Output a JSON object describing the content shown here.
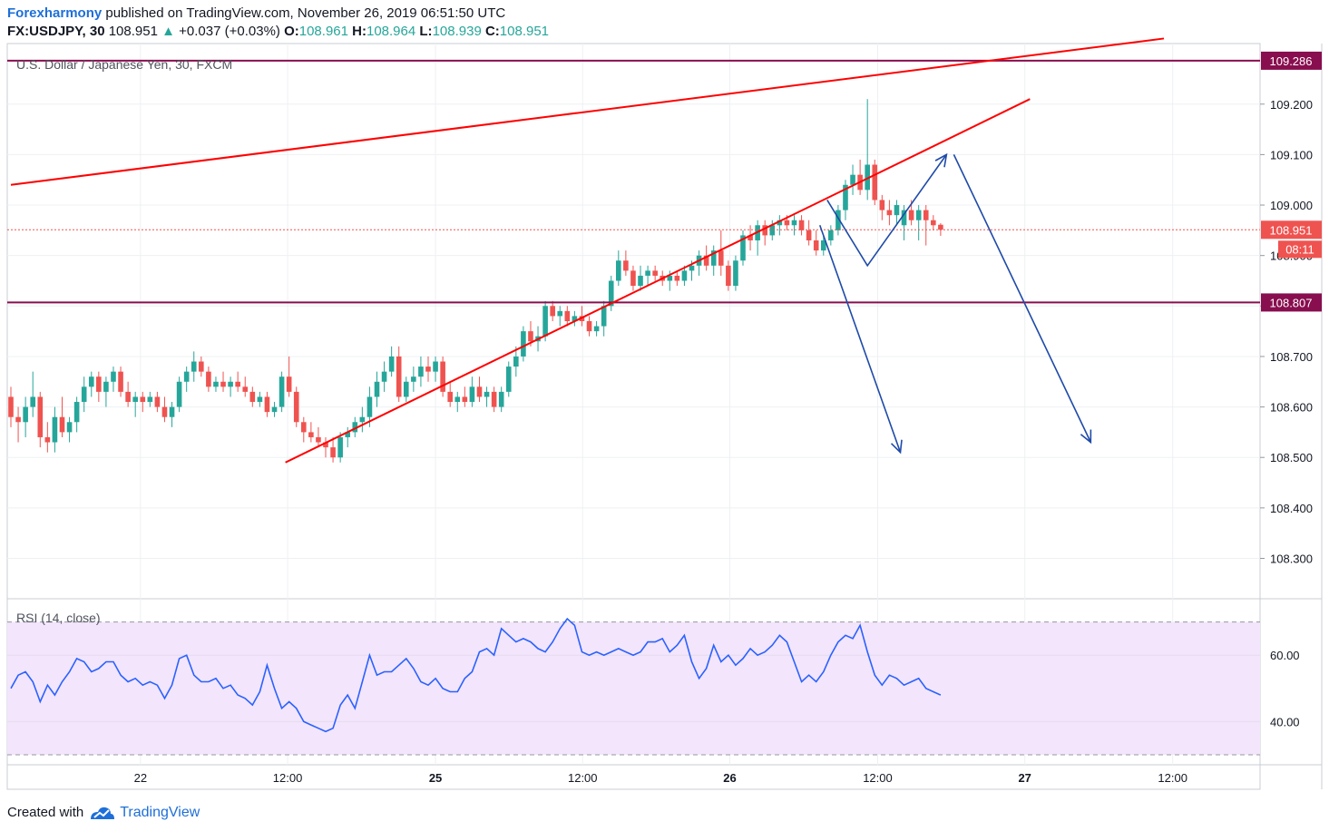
{
  "header": {
    "brand": "Forexharmony",
    "published": " published on TradingView.com, November 26, 2019 06:51:50 UTC"
  },
  "quote": {
    "symbol": "FX:USDJPY, 30",
    "last": "108.951",
    "arrow": "▲",
    "change": "+0.037 (+0.03%)",
    "o_label": "O:",
    "o": "108.961",
    "h_label": "H:",
    "h": "108.964",
    "l_label": "L:",
    "l": "108.939",
    "c_label": "C:",
    "c": "108.951"
  },
  "footer": {
    "created": "Created with",
    "brand": "TradingView"
  },
  "colors": {
    "up": "#26a69a",
    "down": "#ef5350",
    "trend": "#ff0000",
    "level": "#880e4f",
    "arrows": "#1e4aa8",
    "rsi": "#2962ff",
    "rsi_band": "#f3e5fc"
  },
  "chart_data": [
    {
      "type": "candlestick",
      "title": "U.S. Dollar / Japanese Yen, 30, FXCM",
      "ylim": [
        108.22,
        109.32
      ],
      "yticks": [
        "109.200",
        "109.100",
        "109.000",
        "108.900",
        "108.800",
        "108.700",
        "108.600",
        "108.500",
        "108.400",
        "108.300"
      ],
      "xticks": [
        {
          "label": "22",
          "bold": false,
          "bar": 17.7
        },
        {
          "label": "12:00",
          "bold": false,
          "bar": 37.8
        },
        {
          "label": "25",
          "bold": true,
          "bar": 58.0
        },
        {
          "label": "12:00",
          "bold": false,
          "bar": 78.1
        },
        {
          "label": "26",
          "bold": true,
          "bar": 98.2
        },
        {
          "label": "12:00",
          "bold": false,
          "bar": 118.4
        },
        {
          "label": "27",
          "bold": true,
          "bar": 138.5
        },
        {
          "label": "12:00",
          "bold": false,
          "bar": 158.7
        }
      ],
      "price_labels": {
        "resistance": "109.286",
        "last": "108.951",
        "countdown": "08:11",
        "support": "108.807"
      },
      "levels": {
        "resistance": 109.286,
        "support": 108.807,
        "last": 108.951
      },
      "trendlines": [
        {
          "name": "upper-trendline",
          "from": [
            0,
            109.04
          ],
          "to": [
            157.5,
            109.33
          ]
        },
        {
          "name": "lower-trendline",
          "from": [
            37.5,
            108.49
          ],
          "to": [
            139.2,
            109.21
          ]
        }
      ],
      "projections": [
        {
          "name": "projection-arrow-short",
          "points": [
            [
              110.5,
              108.96
            ],
            [
              121.5,
              108.51
            ]
          ]
        },
        {
          "name": "projection-arrow-zigzag",
          "points": [
            [
              111.5,
              109.01
            ],
            [
              117,
              108.88
            ],
            [
              127.8,
              109.1
            ]
          ]
        },
        {
          "name": "projection-arrow-long",
          "points": [
            [
              128.8,
              109.1
            ],
            [
              147.5,
              108.53
            ]
          ]
        }
      ],
      "ohlc": [
        [
          108.62,
          108.64,
          108.56,
          108.58
        ],
        [
          108.58,
          108.6,
          108.53,
          108.57
        ],
        [
          108.57,
          108.62,
          108.54,
          108.6
        ],
        [
          108.6,
          108.67,
          108.58,
          108.62
        ],
        [
          108.62,
          108.63,
          108.52,
          108.54
        ],
        [
          108.54,
          108.57,
          108.51,
          108.53
        ],
        [
          108.53,
          108.6,
          108.51,
          108.58
        ],
        [
          108.58,
          108.62,
          108.54,
          108.55
        ],
        [
          108.55,
          108.58,
          108.53,
          108.57
        ],
        [
          108.57,
          108.62,
          108.55,
          108.61
        ],
        [
          108.61,
          108.66,
          108.59,
          108.64
        ],
        [
          108.64,
          108.67,
          108.62,
          108.66
        ],
        [
          108.66,
          108.67,
          108.61,
          108.63
        ],
        [
          108.63,
          108.66,
          108.6,
          108.65
        ],
        [
          108.65,
          108.68,
          108.63,
          108.67
        ],
        [
          108.67,
          108.68,
          108.62,
          108.63
        ],
        [
          108.63,
          108.65,
          108.6,
          108.61
        ],
        [
          108.61,
          108.63,
          108.58,
          108.62
        ],
        [
          108.62,
          108.63,
          108.59,
          108.61
        ],
        [
          108.61,
          108.63,
          108.6,
          108.62
        ],
        [
          108.62,
          108.63,
          108.59,
          108.6
        ],
        [
          108.6,
          108.62,
          108.57,
          108.58
        ],
        [
          108.58,
          108.61,
          108.56,
          108.6
        ],
        [
          108.6,
          108.66,
          108.59,
          108.65
        ],
        [
          108.65,
          108.68,
          108.63,
          108.67
        ],
        [
          108.67,
          108.71,
          108.65,
          108.69
        ],
        [
          108.69,
          108.7,
          108.66,
          108.67
        ],
        [
          108.67,
          108.68,
          108.63,
          108.64
        ],
        [
          108.64,
          108.66,
          108.63,
          108.65
        ],
        [
          108.65,
          108.67,
          108.63,
          108.64
        ],
        [
          108.64,
          108.66,
          108.62,
          108.65
        ],
        [
          108.65,
          108.67,
          108.63,
          108.64
        ],
        [
          108.64,
          108.66,
          108.62,
          108.63
        ],
        [
          108.63,
          108.64,
          108.6,
          108.61
        ],
        [
          108.61,
          108.63,
          108.6,
          108.62
        ],
        [
          108.62,
          108.63,
          108.58,
          108.59
        ],
        [
          108.59,
          108.61,
          108.58,
          108.6
        ],
        [
          108.6,
          108.67,
          108.59,
          108.66
        ],
        [
          108.66,
          108.7,
          108.62,
          108.63
        ],
        [
          108.63,
          108.64,
          108.56,
          108.57
        ],
        [
          108.57,
          108.58,
          108.53,
          108.55
        ],
        [
          108.55,
          108.57,
          108.53,
          108.54
        ],
        [
          108.54,
          108.56,
          108.52,
          108.53
        ],
        [
          108.53,
          108.54,
          108.5,
          108.52
        ],
        [
          108.52,
          108.54,
          108.49,
          108.5
        ],
        [
          108.5,
          108.55,
          108.49,
          108.54
        ],
        [
          108.54,
          108.56,
          108.52,
          108.55
        ],
        [
          108.55,
          108.58,
          108.54,
          108.57
        ],
        [
          108.57,
          108.6,
          108.55,
          108.58
        ],
        [
          108.58,
          108.64,
          108.56,
          108.62
        ],
        [
          108.62,
          108.67,
          108.6,
          108.65
        ],
        [
          108.65,
          108.69,
          108.63,
          108.67
        ],
        [
          108.67,
          108.72,
          108.66,
          108.7
        ],
        [
          108.7,
          108.72,
          108.61,
          108.62
        ],
        [
          108.62,
          108.66,
          108.61,
          108.65
        ],
        [
          108.65,
          108.68,
          108.63,
          108.66
        ],
        [
          108.66,
          108.7,
          108.64,
          108.68
        ],
        [
          108.68,
          108.7,
          108.65,
          108.67
        ],
        [
          108.67,
          108.7,
          108.65,
          108.69
        ],
        [
          108.69,
          108.7,
          108.62,
          108.63
        ],
        [
          108.63,
          108.65,
          108.6,
          108.61
        ],
        [
          108.61,
          108.63,
          108.59,
          108.62
        ],
        [
          108.62,
          108.64,
          108.6,
          108.61
        ],
        [
          108.61,
          108.66,
          108.6,
          108.64
        ],
        [
          108.64,
          108.66,
          108.61,
          108.62
        ],
        [
          108.62,
          108.64,
          108.6,
          108.63
        ],
        [
          108.63,
          108.64,
          108.59,
          108.6
        ],
        [
          108.6,
          108.64,
          108.59,
          108.63
        ],
        [
          108.63,
          108.69,
          108.62,
          108.68
        ],
        [
          108.68,
          108.72,
          108.66,
          108.7
        ],
        [
          108.7,
          108.76,
          108.69,
          108.75
        ],
        [
          108.75,
          108.77,
          108.72,
          108.73
        ],
        [
          108.73,
          108.76,
          108.71,
          108.74
        ],
        [
          108.74,
          108.81,
          108.73,
          108.8
        ],
        [
          108.8,
          108.81,
          108.77,
          108.78
        ],
        [
          108.78,
          108.8,
          108.76,
          108.79
        ],
        [
          108.79,
          108.8,
          108.76,
          108.77
        ],
        [
          108.77,
          108.79,
          108.76,
          108.78
        ],
        [
          108.78,
          108.8,
          108.76,
          108.77
        ],
        [
          108.77,
          108.78,
          108.74,
          108.75
        ],
        [
          108.75,
          108.77,
          108.74,
          108.76
        ],
        [
          108.76,
          108.81,
          108.74,
          108.8
        ],
        [
          108.8,
          108.86,
          108.79,
          108.85
        ],
        [
          108.85,
          108.91,
          108.84,
          108.89
        ],
        [
          108.89,
          108.91,
          108.86,
          108.87
        ],
        [
          108.87,
          108.88,
          108.83,
          108.84
        ],
        [
          108.84,
          108.88,
          108.83,
          108.86
        ],
        [
          108.86,
          108.88,
          108.84,
          108.87
        ],
        [
          108.87,
          108.88,
          108.85,
          108.86
        ],
        [
          108.86,
          108.87,
          108.84,
          108.85
        ],
        [
          108.85,
          108.87,
          108.83,
          108.86
        ],
        [
          108.86,
          108.87,
          108.84,
          108.85
        ],
        [
          108.85,
          108.88,
          108.84,
          108.87
        ],
        [
          108.87,
          108.89,
          108.85,
          108.88
        ],
        [
          108.88,
          108.91,
          108.86,
          108.9
        ],
        [
          108.9,
          108.92,
          108.87,
          108.88
        ],
        [
          108.88,
          108.92,
          108.86,
          108.91
        ],
        [
          108.91,
          108.95,
          108.86,
          108.88
        ],
        [
          108.88,
          108.89,
          108.83,
          108.84
        ],
        [
          108.84,
          108.9,
          108.83,
          108.89
        ],
        [
          108.89,
          108.95,
          108.88,
          108.94
        ],
        [
          108.94,
          108.96,
          108.91,
          108.93
        ],
        [
          108.93,
          108.97,
          108.9,
          108.96
        ],
        [
          108.96,
          108.97,
          108.92,
          108.94
        ],
        [
          108.94,
          108.97,
          108.93,
          108.96
        ],
        [
          108.96,
          108.98,
          108.94,
          108.97
        ],
        [
          108.97,
          108.98,
          108.95,
          108.96
        ],
        [
          108.96,
          108.98,
          108.94,
          108.97
        ],
        [
          108.97,
          108.98,
          108.94,
          108.95
        ],
        [
          108.95,
          108.97,
          108.92,
          108.93
        ],
        [
          108.93,
          108.95,
          108.9,
          108.91
        ],
        [
          108.91,
          108.94,
          108.9,
          108.93
        ],
        [
          108.93,
          108.96,
          108.92,
          108.95
        ],
        [
          108.95,
          109.0,
          108.94,
          108.99
        ],
        [
          108.99,
          109.05,
          108.97,
          109.04
        ],
        [
          109.04,
          109.08,
          109.02,
          109.06
        ],
        [
          109.06,
          109.09,
          109.02,
          109.03
        ],
        [
          109.03,
          109.21,
          109.01,
          109.08
        ],
        [
          109.08,
          109.09,
          109.0,
          109.01
        ],
        [
          109.01,
          109.02,
          108.97,
          108.99
        ],
        [
          108.99,
          109.01,
          108.96,
          108.98
        ],
        [
          108.98,
          109.01,
          108.96,
          109.0
        ],
        [
          108.96,
          109.0,
          108.93,
          108.99
        ],
        [
          108.99,
          109.01,
          108.96,
          108.97
        ],
        [
          108.97,
          109.0,
          108.93,
          108.99
        ],
        [
          108.99,
          109.0,
          108.92,
          108.97
        ],
        [
          108.97,
          108.98,
          108.95,
          108.96
        ],
        [
          108.961,
          108.964,
          108.939,
          108.951
        ]
      ]
    },
    {
      "type": "line",
      "title": "RSI (14, close)",
      "ylim": [
        27,
        77
      ],
      "yticks": [
        "60.00",
        "40.00"
      ],
      "band": [
        30,
        70
      ],
      "values": [
        50,
        54,
        55,
        52,
        46,
        51,
        48,
        52,
        55,
        59,
        58,
        55,
        56,
        58,
        58,
        54,
        52,
        53,
        51,
        52,
        51,
        47,
        51,
        59,
        60,
        54,
        52,
        52,
        53,
        50,
        51,
        48,
        47,
        45,
        49,
        57,
        50,
        44,
        46,
        44,
        40,
        39,
        38,
        37,
        38,
        45,
        48,
        44,
        52,
        60,
        54,
        55,
        55,
        57,
        59,
        56,
        52,
        51,
        53,
        50,
        49,
        49,
        53,
        55,
        61,
        62,
        60,
        68,
        66,
        64,
        65,
        64,
        62,
        61,
        64,
        68,
        71,
        69,
        61,
        60,
        61,
        60,
        61,
        62,
        61,
        60,
        61,
        64,
        64,
        65,
        61,
        63,
        66,
        58,
        53,
        56,
        63,
        58,
        60,
        57,
        59,
        62,
        60,
        61,
        63,
        66,
        64,
        58,
        52,
        54,
        52,
        55,
        60,
        64,
        66,
        65,
        69,
        61,
        54,
        51,
        54,
        53,
        51,
        52,
        53,
        50,
        49,
        48
      ]
    }
  ]
}
